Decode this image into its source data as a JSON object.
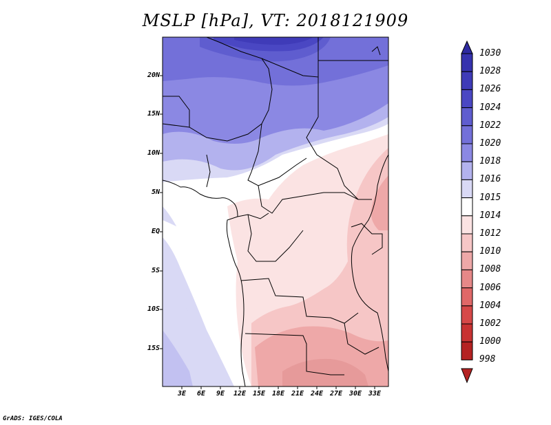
{
  "title": "MSLP [hPa], VT: 2018121909",
  "colorbar": [
    {
      "label": "1030",
      "color": "#2e2aa0"
    },
    {
      "label": "1028",
      "color": "#3632ae"
    },
    {
      "label": "1026",
      "color": "#3f3bb8"
    },
    {
      "label": "1024",
      "color": "#4a47c3"
    },
    {
      "label": "1022",
      "color": "#5f5dcf"
    },
    {
      "label": "1020",
      "color": "#7370d9"
    },
    {
      "label": "1018",
      "color": "#8b88e3"
    },
    {
      "label": "1016",
      "color": "#b3b2ee"
    },
    {
      "label": "1015",
      "color": "#d9d9f5"
    },
    {
      "label": "1014",
      "color": "#ffffff"
    },
    {
      "label": "1012",
      "color": "#fbe3e3"
    },
    {
      "label": "1010",
      "color": "#f6c6c6"
    },
    {
      "label": "1008",
      "color": "#eea8a8"
    },
    {
      "label": "1006",
      "color": "#e68888"
    },
    {
      "label": "1004",
      "color": "#e06868"
    },
    {
      "label": "1002",
      "color": "#d64848"
    },
    {
      "label": "1000",
      "color": "#c83232"
    },
    {
      "label": "998",
      "color": "#b42222"
    }
  ],
  "latitude_labels": [
    "20N",
    "15N",
    "10N",
    "5N",
    "EQ",
    "5S",
    "10S",
    "15S"
  ],
  "longitude_labels": [
    "3E",
    "6E",
    "9E",
    "12E",
    "15E",
    "18E",
    "21E",
    "24E",
    "27E",
    "30E",
    "33E"
  ],
  "footer": "GrADS: IGES/COLA"
}
